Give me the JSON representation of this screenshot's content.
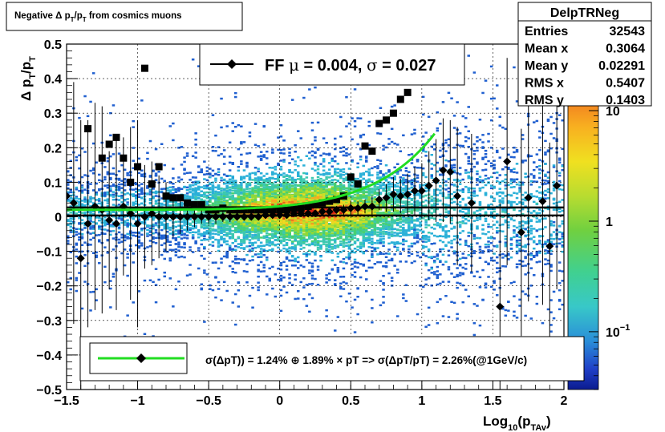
{
  "chart_data": {
    "type": "scatter",
    "title": "Negative Δ p_{T}/p_{T} from cosmics muons",
    "title_parts": {
      "t1": "Negative Δ p",
      "s1": "T",
      "t2": "/p",
      "s2": "T",
      "t3": " from cosmics muons"
    },
    "xlabel": "Log_{10}(p_{TAv})",
    "xlabel_parts": {
      "a": "Log",
      "b": "10",
      "c": "(p",
      "d": "TAv",
      "e": ")"
    },
    "ylabel": "Δ p_{T}/p_{T}",
    "ylabel_parts": {
      "a": "Δ p",
      "b": "T",
      "c": "/p",
      "d": "T"
    },
    "xlim": [
      -1.5,
      2.0
    ],
    "ylim": [
      -0.5,
      0.5
    ],
    "xticks": [
      -1.5,
      -1,
      -0.5,
      0,
      0.5,
      1,
      1.5,
      2
    ],
    "xtick_labels": [
      "−1.5",
      "−1",
      "−0.5",
      "0",
      "0.5",
      "1",
      "1.5",
      "2"
    ],
    "yticks": [
      -0.5,
      -0.4,
      -0.3,
      -0.2,
      -0.1,
      0,
      0.1,
      0.2,
      0.3,
      0.4,
      0.5
    ],
    "ytick_labels": [
      "−0.5",
      "−0.4",
      "−0.3",
      "−0.2",
      "−0.1",
      "0",
      "0.1",
      "0.2",
      "0.3",
      "0.4",
      "0.5"
    ],
    "grid": true,
    "colorbar": {
      "scale": "log",
      "range": [
        0.03,
        40
      ],
      "labels": [
        {
          "value": 10,
          "text": "10"
        },
        {
          "value": 1,
          "text": "1"
        },
        {
          "value": 0.1,
          "text": "10",
          "sup": "−1"
        }
      ]
    },
    "stats_box": {
      "title": "DelpTRNeg",
      "rows": [
        {
          "label": "Entries",
          "value": "32543"
        },
        {
          "label": "Mean x",
          "value": "0.3064"
        },
        {
          "label": "Mean y",
          "value": "0.02291"
        },
        {
          "label": "RMS x",
          "value": "0.5407"
        },
        {
          "label": "RMS y",
          "value": "0.1403"
        }
      ]
    },
    "fit_legend": {
      "entry_text": "FF μ =  0.004, σ =   0.027",
      "parts": {
        "a": "FF ",
        "mu": "μ",
        "b": " =  0.004, ",
        "sigma": "σ",
        "c": " =   0.027"
      }
    },
    "resolution_legend": {
      "text": "σ(ΔpT)) =  1.24% ⊕  1.89% × pT => σ(ΔpT/pT) =  2.26%(@1GeV/c)"
    },
    "series": [
      {
        "name": "FF μ",
        "marker": "diamond",
        "color": "#000000",
        "x": [
          -1.5,
          -1.45,
          -1.4,
          -1.35,
          -1.3,
          -1.25,
          -1.2,
          -1.15,
          -1.1,
          -1.05,
          -1.0,
          -0.95,
          -0.9,
          -0.85,
          -0.8,
          -0.75,
          -0.7,
          -0.65,
          -0.6,
          -0.55,
          -0.5,
          -0.45,
          -0.4,
          -0.35,
          -0.3,
          -0.25,
          -0.2,
          -0.15,
          -0.1,
          -0.05,
          0.0,
          0.05,
          0.1,
          0.15,
          0.2,
          0.25,
          0.3,
          0.35,
          0.4,
          0.45,
          0.5,
          0.55,
          0.6,
          0.65,
          0.7,
          0.75,
          0.8,
          0.85,
          0.9,
          0.95,
          1.0,
          1.05,
          1.1,
          1.15,
          1.2,
          1.25,
          1.35,
          1.55,
          1.6,
          1.7,
          1.75,
          1.85,
          1.9,
          1.95
        ],
        "y": [
          0.06,
          0.04,
          -0.12,
          -0.02,
          0.03,
          0.02,
          -0.01,
          -0.02,
          0.03,
          0.01,
          -0.02,
          0.0,
          0.01,
          0.0,
          0.0,
          0.0,
          0.0,
          0.0,
          0.0,
          0.0,
          0.0,
          0.0,
          0.0,
          0.0,
          0.0,
          0.0,
          0.0,
          0.0,
          0.005,
          0.005,
          0.005,
          0.005,
          0.01,
          0.01,
          0.01,
          0.01,
          0.015,
          0.015,
          0.02,
          0.02,
          0.025,
          0.025,
          0.03,
          0.03,
          0.05,
          0.055,
          0.065,
          0.06,
          0.065,
          0.075,
          0.075,
          0.09,
          0.105,
          0.135,
          0.13,
          0.06,
          0.04,
          -0.26,
          0.16,
          -0.045,
          0.055,
          0.045,
          -0.085,
          0.09
        ],
        "yerr": [
          0.3,
          0.35,
          0.4,
          0.3,
          0.3,
          0.3,
          0.2,
          0.25,
          0.2,
          0.25,
          0.3,
          0.15,
          0.15,
          0.12,
          0.1,
          0.06,
          0.05,
          0.04,
          0.03,
          0.02,
          0.02,
          0.02,
          0.015,
          0.015,
          0.01,
          0.01,
          0.01,
          0.01,
          0.008,
          0.008,
          0.008,
          0.008,
          0.008,
          0.01,
          0.01,
          0.01,
          0.01,
          0.01,
          0.01,
          0.015,
          0.02,
          0.02,
          0.02,
          0.03,
          0.03,
          0.04,
          0.05,
          0.05,
          0.06,
          0.07,
          0.08,
          0.1,
          0.12,
          0.15,
          0.15,
          0.2,
          0.2,
          0.3,
          0.3,
          0.3,
          0.3,
          0.3,
          0.3,
          0.3
        ]
      },
      {
        "name": "resolution",
        "marker": "square",
        "color": "#000000",
        "x": [
          -1.35,
          -1.25,
          -1.2,
          -1.15,
          -1.1,
          -1.05,
          -1.0,
          -0.95,
          -0.9,
          -0.85,
          -0.8,
          -0.75,
          -0.7,
          -0.65,
          -0.6,
          -0.55,
          -0.5,
          -0.45,
          -0.4,
          -0.35,
          -0.3,
          -0.25,
          -0.2,
          -0.15,
          -0.1,
          -0.05,
          0.0,
          0.05,
          0.1,
          0.15,
          0.2,
          0.25,
          0.3,
          0.35,
          0.4,
          0.45,
          0.5,
          0.55,
          0.6,
          0.65,
          0.7,
          0.75,
          0.8,
          0.85,
          0.9,
          0.95,
          1.0,
          1.05
        ],
        "y": [
          0.255,
          0.17,
          0.21,
          0.23,
          0.17,
          0.1,
          0.145,
          0.43,
          0.095,
          0.145,
          0.06,
          0.055,
          0.055,
          0.04,
          0.035,
          0.035,
          0.02,
          0.02,
          0.025,
          0.02,
          0.02,
          0.02,
          0.02,
          0.02,
          0.02,
          0.02,
          0.02,
          0.02,
          0.025,
          0.025,
          0.03,
          0.035,
          0.04,
          0.045,
          0.05,
          0.06,
          0.115,
          0.095,
          0.205,
          0.19,
          0.27,
          0.28,
          0.3,
          0.34,
          0.36,
          0.41,
          0.5,
          0.5
        ]
      }
    ],
    "lines": [
      {
        "name": "fit",
        "type": "curve",
        "color": "#22dd22"
      },
      {
        "name": "mean",
        "type": "hline",
        "y": 0.004,
        "color": "#000000"
      },
      {
        "name": "mean-upper",
        "type": "hline",
        "y": 0.027,
        "color": "#000000"
      }
    ]
  }
}
